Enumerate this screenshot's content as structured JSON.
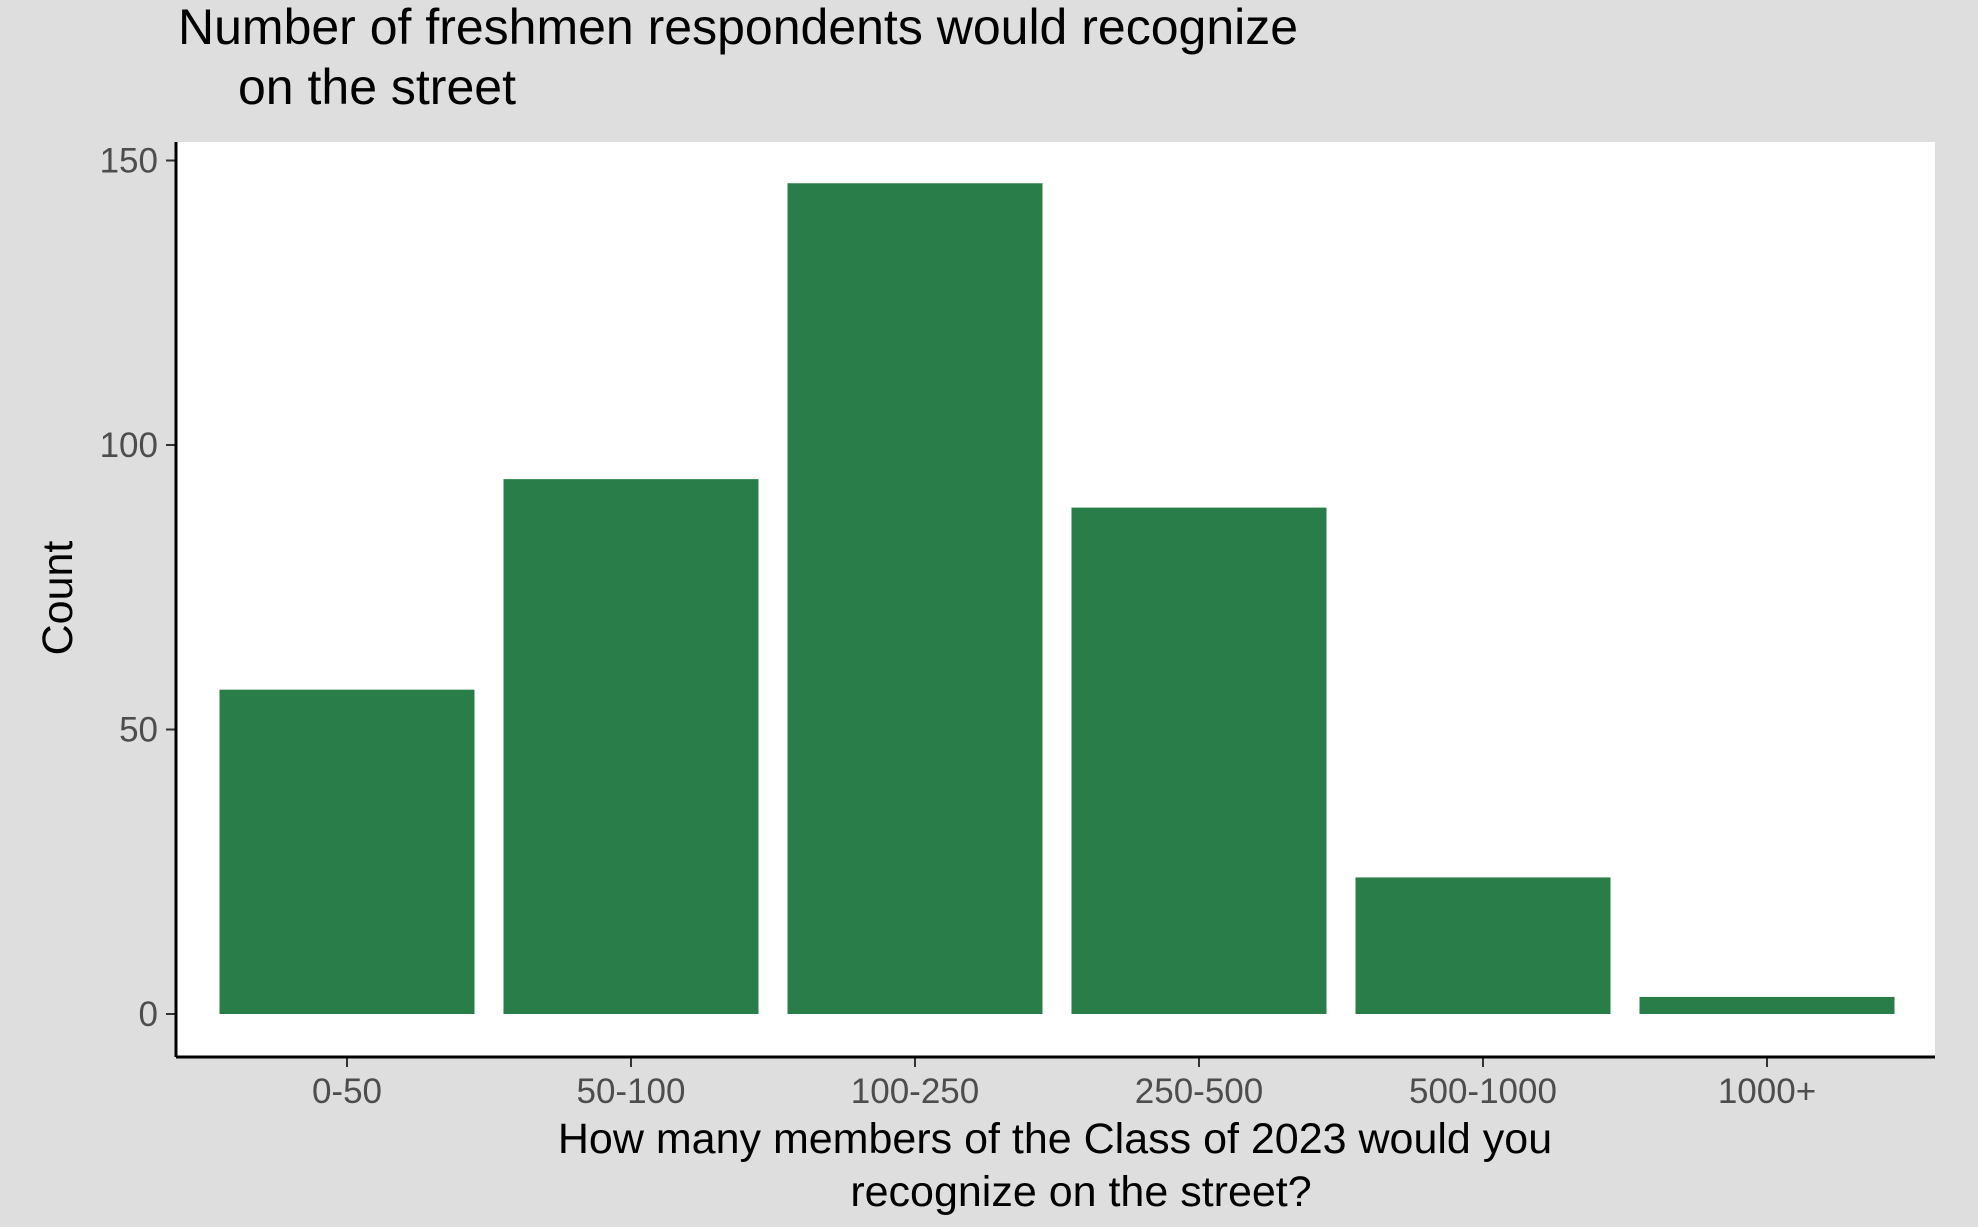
{
  "chart_data": {
    "type": "bar",
    "title_lines": [
      "Number of freshmen respondents would recognize",
      "on the street"
    ],
    "xlabel_lines": [
      "How many members of the Class of 2023 would you",
      "recognize on the street?"
    ],
    "ylabel": "Count",
    "categories": [
      "0-50",
      "50-100",
      "100-250",
      "250-500",
      "500-1000",
      "1000+"
    ],
    "values": [
      57,
      94,
      146,
      89,
      24,
      3
    ],
    "ylim": [
      0,
      155
    ],
    "yticks": [
      0,
      50,
      100,
      150
    ],
    "grid": false,
    "legend": "none",
    "colors": {
      "bar": "#287d48",
      "panel_background": "#ffffff",
      "plot_background": "#dedede",
      "axis": "#000000",
      "tick_label": "#4d4d4d",
      "text": "#000000"
    }
  }
}
